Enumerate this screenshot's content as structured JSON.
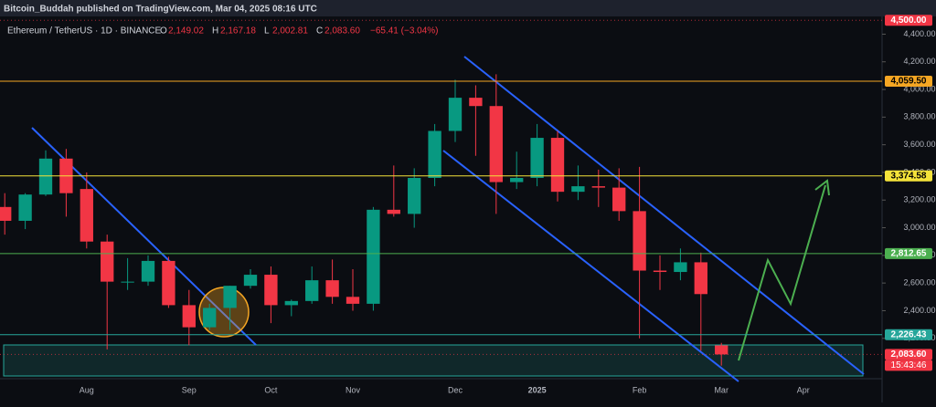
{
  "chart_data": {
    "type": "candlestick",
    "title": "Bitcoin_Buddah published on TradingView.com, Mar 04, 2025 08:16 UTC",
    "symbol": "Ethereum / TetherUS · 1D · BINANCE",
    "info": [
      {
        "key": "O",
        "text": "2,149.02"
      },
      {
        "key": "H",
        "text": "2,167.18"
      },
      {
        "key": "L",
        "text": "2,002.81"
      },
      {
        "key": "C",
        "text": "2,083.60"
      }
    ],
    "change": "−65.41 (−3.04%)",
    "categories": [
      null,
      null,
      null,
      null,
      "Aug",
      null,
      null,
      null,
      null,
      "Sep",
      null,
      null,
      null,
      "Oct",
      null,
      null,
      null,
      "Nov",
      null,
      null,
      null,
      null,
      "Dec",
      null,
      null,
      null,
      "2025",
      null,
      null,
      null,
      null,
      "Feb",
      null,
      null,
      null,
      "Mar",
      null,
      null,
      null,
      "Apr",
      null,
      null,
      null
    ],
    "open": [
      3150,
      3050,
      3240,
      3500,
      3280,
      2900,
      2610,
      2610,
      2760,
      2440,
      2280,
      2420,
      2580,
      2660,
      2440,
      2470,
      2620,
      2500,
      2450,
      3130,
      3100,
      3360,
      3700,
      3940,
      3880,
      3330,
      3360,
      3650,
      3260,
      3300,
      3290,
      3120,
      2690,
      2680,
      2750,
      2149.02,
      null,
      null,
      null,
      null,
      null,
      null,
      null
    ],
    "high": [
      3250,
      3250,
      3560,
      3570,
      3400,
      2950,
      2780,
      2800,
      2790,
      2550,
      2450,
      2580,
      2700,
      2720,
      2480,
      2720,
      2770,
      2700,
      3150,
      3450,
      3430,
      3750,
      4070,
      4030,
      4110,
      3550,
      3750,
      3700,
      3450,
      3420,
      3430,
      3440,
      2800,
      2850,
      2820,
      2167.18,
      null,
      null,
      null,
      null,
      null,
      null,
      null
    ],
    "low": [
      2950,
      2990,
      3230,
      3080,
      2850,
      2120,
      2550,
      2580,
      2420,
      2150,
      2260,
      2260,
      2560,
      2310,
      2360,
      2450,
      2450,
      2400,
      2400,
      3080,
      3000,
      3300,
      3620,
      3520,
      3100,
      3280,
      3300,
      3190,
      3200,
      3150,
      3050,
      2200,
      2550,
      2620,
      2110,
      2002.81,
      null,
      null,
      null,
      null,
      null,
      null,
      null
    ],
    "close": [
      3050,
      3240,
      3500,
      3250,
      2900,
      2610,
      2610,
      2760,
      2440,
      2280,
      2420,
      2580,
      2660,
      2440,
      2470,
      2620,
      2500,
      2450,
      3130,
      3100,
      3360,
      3700,
      3940,
      3880,
      3330,
      3360,
      3650,
      3260,
      3300,
      3290,
      3120,
      2690,
      2680,
      2750,
      2520,
      2083.6,
      null,
      null,
      null,
      null,
      null,
      null,
      null
    ],
    "up_color": "#089981",
    "down_color": "#f23645",
    "ylim": [
      1908,
      4515
    ],
    "yticks": [
      {
        "value": 4400,
        "label": "4,400.00"
      },
      {
        "value": 4200,
        "label": "4,200.00"
      },
      {
        "value": 4000,
        "label": "4,000.00"
      },
      {
        "value": 3800,
        "label": "3,800.00"
      },
      {
        "value": 3600,
        "label": "3,600.00"
      },
      {
        "value": 3400,
        "label": "3,400.00"
      },
      {
        "value": 3200,
        "label": "3,200.00"
      },
      {
        "value": 3000,
        "label": "3,000.00"
      },
      {
        "value": 2800,
        "label": "2,800.00"
      },
      {
        "value": 2600,
        "label": "2,600.00"
      },
      {
        "value": 2400,
        "label": "2,400.00"
      },
      {
        "value": 2200,
        "label": "2,200.00"
      }
    ],
    "levels": [
      {
        "value": 4500,
        "label": "4,500.00",
        "color": "#f23645",
        "line": false
      },
      {
        "value": 4059.5,
        "label": "4,059.50",
        "color": "#f5a623",
        "line": true
      },
      {
        "value": 3374.58,
        "label": "3,374.58",
        "color": "#f5e33a",
        "line": true
      },
      {
        "value": 2812.65,
        "label": "2,812.65",
        "color": "#4caf50",
        "line": true
      },
      {
        "value": 2226.43,
        "label": "2,226.43",
        "color": "#26a69a",
        "line": true
      },
      {
        "value": 2083.6,
        "label": "2,083.60",
        "color": "#f23645",
        "line": false
      }
    ],
    "countdown": "15:43:46"
  }
}
